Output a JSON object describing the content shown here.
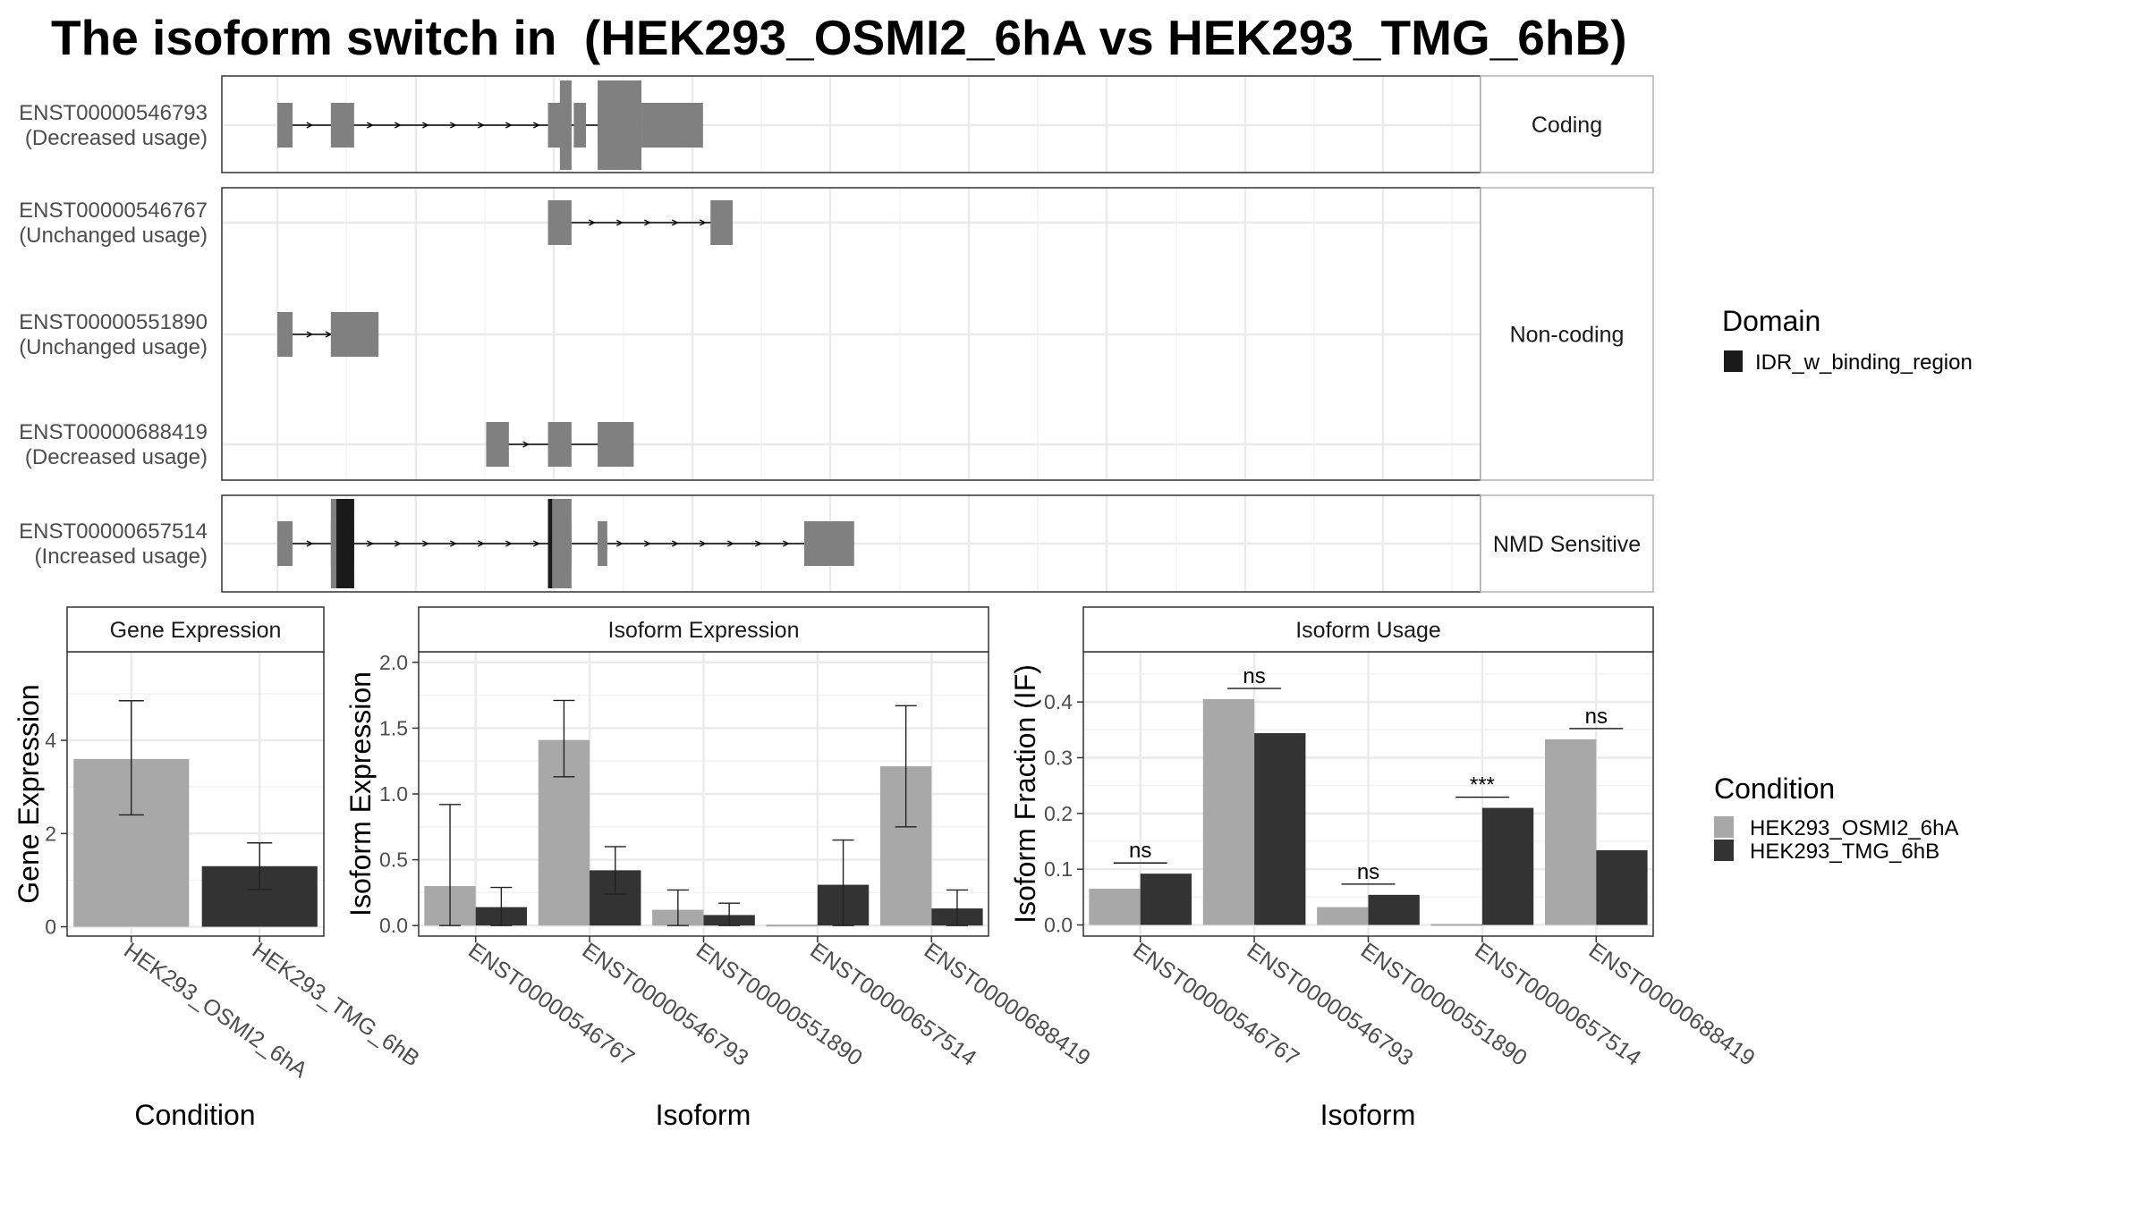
{
  "title": "The isoform switch in  (HEK293_OSMI2_6hA vs HEK293_TMG_6hB)",
  "colors": {
    "exon": "#808080",
    "domain": "#1a1a1a",
    "condA": "#a8a8a8",
    "condB": "#333333",
    "grid": "#ebebeb",
    "strip_fill": "#ffffff"
  },
  "structure": {
    "groups": [
      {
        "label": "Coding",
        "transcripts": [
          {
            "id": "ENST00000546793",
            "usage": "(Decreased usage)",
            "exons": [
              [
                0,
                0.055
              ],
              [
                0.193,
                0.277
              ],
              [
                0.976,
                1.061
              ],
              [
                1.069,
                1.113
              ],
              [
                1.155,
                1.313
              ],
              [
                1.313,
                1.535
              ]
            ],
            "tall": [
              [
                1.019,
                1.061
              ],
              [
                1.155,
                1.313
              ]
            ],
            "domains": [],
            "arrows": [
              0.125,
              0.243,
              0.343,
              0.443,
              0.543,
              0.643,
              0.743,
              0.843,
              0.943
            ]
          }
        ]
      },
      {
        "label": "Non-coding",
        "transcripts": [
          {
            "id": "ENST00000546767",
            "usage": "(Unchanged usage)",
            "exons": [
              [
                0.976,
                1.061
              ],
              [
                1.562,
                1.642
              ]
            ],
            "tall": [],
            "domains": [],
            "arrows": [
              1.143,
              1.243,
              1.343,
              1.443,
              1.543
            ]
          },
          {
            "id": "ENST00000551890",
            "usage": "(Unchanged usage)",
            "exons": [
              [
                0,
                0.055
              ],
              [
                0.193,
                0.365
              ]
            ],
            "tall": [],
            "domains": [],
            "arrows": [
              0.125,
              0.193
            ]
          },
          {
            "id": "ENST00000688419",
            "usage": "(Decreased usage)",
            "exons": [
              [
                0.753,
                0.835
              ],
              [
                0.976,
                1.061
              ],
              [
                1.155,
                1.285
              ]
            ],
            "tall": [],
            "domains": [],
            "arrows": [
              0.905
            ]
          }
        ]
      },
      {
        "label": "NMD Sensitive",
        "transcripts": [
          {
            "id": "ENST00000657514",
            "usage": "(Increased usage)",
            "exons": [
              [
                0,
                0.055
              ],
              [
                0.193,
                0.277
              ],
              [
                0.976,
                1.061
              ],
              [
                1.155,
                1.19
              ],
              [
                1.9,
                2.08
              ]
            ],
            "tall": [
              [
                0.193,
                0.277
              ],
              [
                0.976,
                1.061
              ]
            ],
            "domains": [
              [
                0.213,
                0.277
              ],
              [
                0.976,
                0.991
              ]
            ],
            "arrows": [
              0.125,
              0.343,
              0.443,
              0.543,
              0.643,
              0.743,
              0.843,
              0.943,
              1.243,
              1.343,
              1.443,
              1.543,
              1.643,
              1.743,
              1.843
            ]
          }
        ]
      }
    ]
  },
  "domain_legend": {
    "title": "Domain",
    "items": [
      "IDR_w_binding_region"
    ]
  },
  "condition_legend": {
    "title": "Condition",
    "items": [
      "HEK293_OSMI2_6hA",
      "HEK293_TMG_6hB"
    ]
  },
  "chart_data": [
    {
      "type": "bar",
      "title": "Gene Expression",
      "xlabel": "Condition",
      "ylabel": "Gene Expression",
      "ylim": [
        -0.2,
        5.9
      ],
      "yticks": [
        0,
        2,
        4
      ],
      "categories": [
        "HEK293_OSMI2_6hA",
        "HEK293_TMG_6hB"
      ],
      "values": [
        3.6,
        1.3
      ],
      "errors": [
        [
          2.4,
          4.85
        ],
        [
          0.8,
          1.8
        ]
      ]
    },
    {
      "type": "bar",
      "title": "Isoform Expression",
      "xlabel": "Isoform",
      "ylabel": "Isoform Expression",
      "ylim": [
        -0.08,
        2.08
      ],
      "yticks": [
        "0.0",
        "0.5",
        "1.0",
        "1.5",
        "2.0"
      ],
      "categories": [
        "ENST00000546767",
        "ENST00000546793",
        "ENST00000551890",
        "ENST00000657514",
        "ENST00000688419"
      ],
      "series": [
        {
          "name": "HEK293_OSMI2_6hA",
          "values": [
            0.3,
            1.41,
            0.12,
            0.0,
            1.21
          ],
          "errors": [
            [
              0,
              0.92
            ],
            [
              1.13,
              1.71
            ],
            [
              0,
              0.27
            ],
            [
              0,
              0
            ],
            [
              0.75,
              1.67
            ]
          ]
        },
        {
          "name": "HEK293_TMG_6hB",
          "values": [
            0.14,
            0.42,
            0.08,
            0.31,
            0.13
          ],
          "errors": [
            [
              0,
              0.29
            ],
            [
              0.24,
              0.6
            ],
            [
              0,
              0.17
            ],
            [
              0,
              0.65
            ],
            [
              0,
              0.27
            ]
          ]
        }
      ]
    },
    {
      "type": "bar",
      "title": "Isoform Usage",
      "xlabel": "Isoform",
      "ylabel": "Isoform Fraction (IF)",
      "ylim": [
        -0.02,
        0.49
      ],
      "yticks": [
        "0.0",
        "0.1",
        "0.2",
        "0.3",
        "0.4"
      ],
      "categories": [
        "ENST00000546767",
        "ENST00000546793",
        "ENST00000551890",
        "ENST00000657514",
        "ENST00000688419"
      ],
      "series": [
        {
          "name": "HEK293_OSMI2_6hA",
          "values": [
            0.065,
            0.405,
            0.032,
            0.0,
            0.333
          ]
        },
        {
          "name": "HEK293_TMG_6hB",
          "values": [
            0.092,
            0.344,
            0.054,
            0.21,
            0.134
          ]
        }
      ],
      "significance": [
        "ns",
        "ns",
        "ns",
        "***",
        "ns"
      ]
    }
  ]
}
